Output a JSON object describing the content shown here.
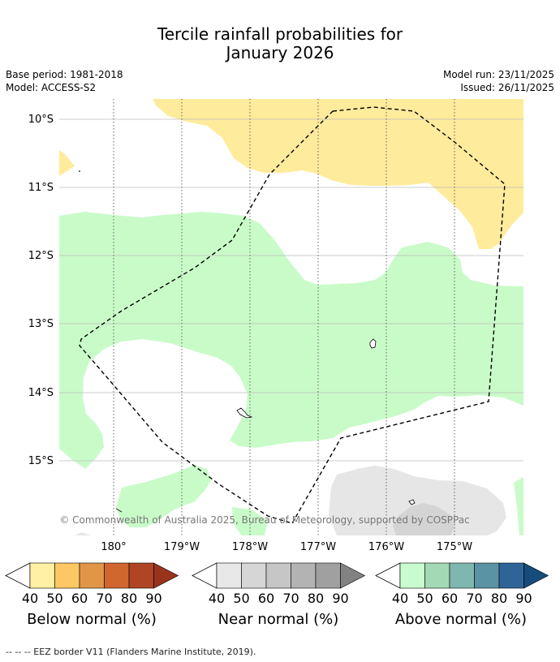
{
  "title": {
    "line1": "Tercile rainfall probabilities for",
    "line2": "January 2026"
  },
  "meta": {
    "base_period": "Base period: 1981-2018",
    "model": "Model: ACCESS-S2",
    "model_run": "Model run: 23/11/2025",
    "issued": "Issued: 26/11/2025"
  },
  "map": {
    "latitude_labels": [
      "10°S",
      "11°S",
      "12°S",
      "13°S",
      "14°S",
      "15°S"
    ],
    "longitude_labels": [
      "180°",
      "179°W",
      "178°W",
      "177°W",
      "176°W",
      "175°W"
    ],
    "copyright": "© Commonwealth of Australia 2025, Bureau of Meteorology, supported by COSPPac",
    "colors": {
      "below_normal_40_50": "#ffeb9c",
      "near_normal_40_50": "#e6e6e6",
      "near_normal_50_60": "#d4d4d4",
      "above_normal_40_50": "#c9fbc9",
      "land_outline": "#000000",
      "eez_line": "#000000"
    }
  },
  "colorbars": [
    {
      "name": "below",
      "label": "Below normal (%)",
      "ticks": [
        "40",
        "50",
        "60",
        "70",
        "80",
        "90"
      ],
      "colors": [
        "#fff0a3",
        "#fdc863",
        "#e09547",
        "#d1662f",
        "#af4525",
        "#9a331c"
      ]
    },
    {
      "name": "near",
      "label": "Near normal (%)",
      "ticks": [
        "40",
        "50",
        "60",
        "70",
        "80",
        "90"
      ],
      "colors": [
        "#e8e8e8",
        "#d6d6d6",
        "#c6c6c6",
        "#b3b3b3",
        "#a0a0a0",
        "#828282"
      ]
    },
    {
      "name": "above",
      "label": "Above normal (%)",
      "ticks": [
        "40",
        "50",
        "60",
        "70",
        "80",
        "90"
      ],
      "colors": [
        "#c8fbce",
        "#a3d9b4",
        "#7fb6b0",
        "#5a93a3",
        "#2f6499",
        "#154c7b"
      ]
    }
  ],
  "footnote": "-- -- -- EEZ border V11 (Flanders Marine Institute, 2019)."
}
